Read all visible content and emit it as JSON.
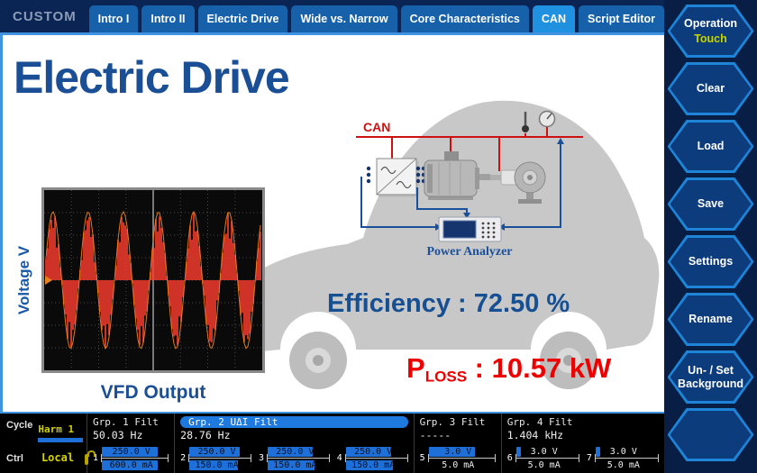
{
  "topbar": {
    "brand": "CUSTOM",
    "tabs": [
      {
        "label": "Intro I",
        "selected": false
      },
      {
        "label": "Intro II",
        "selected": false
      },
      {
        "label": "Electric Drive",
        "selected": false
      },
      {
        "label": "Wide vs. Narrow",
        "selected": false
      },
      {
        "label": "Core Characteristics",
        "selected": false
      },
      {
        "label": "CAN",
        "selected": true
      },
      {
        "label": "Script Editor",
        "selected": false
      }
    ]
  },
  "side_buttons": [
    {
      "label": "Operation",
      "sublabel": "Touch"
    },
    {
      "label": "Clear",
      "sublabel": ""
    },
    {
      "label": "Load",
      "sublabel": ""
    },
    {
      "label": "Save",
      "sublabel": ""
    },
    {
      "label": "Settings",
      "sublabel": ""
    },
    {
      "label": "Rename",
      "sublabel": ""
    },
    {
      "label": "Un- / Set Background",
      "sublabel": ""
    },
    {
      "label": "",
      "sublabel": ""
    }
  ],
  "main": {
    "title": "Electric Drive",
    "scope": {
      "ylabel": "Voltage V",
      "caption": "VFD Output"
    },
    "diagram": {
      "can_label": "CAN",
      "analyzer_label": "Power Analyzer"
    },
    "efficiency": {
      "label": "Efficiency",
      "separator": " : ",
      "value": "72.50 %"
    },
    "ploss": {
      "label": "P",
      "subscript": "LOSS",
      "separator": " : ",
      "value": "10.57 kW"
    }
  },
  "chart_data": {
    "type": "line",
    "title": "VFD Output",
    "ylabel": "Voltage V",
    "xlabel": "",
    "grid": true,
    "legend_position": "none",
    "description": "Oscilloscope-style display of VFD output voltage: a sine-modulated PWM pulse train symmetric about zero, roughly 6 fundamental cycles visible, no numeric axis scales shown, trigger cursor at horizontal center",
    "cycles_visible": 6.2,
    "series": [
      {
        "name": "VFD output voltage",
        "waveform": "sine-modulated-pwm",
        "relative_amplitude": 1.0
      }
    ]
  },
  "statusbar": {
    "cycle": {
      "label": "Cycle",
      "value": "Harm 1"
    },
    "ctrl": {
      "label": "Ctrl",
      "value": "Local"
    },
    "groups": [
      {
        "name": "Grp. 1 Filt",
        "freq": "50.03  Hz",
        "highlighted": false,
        "flex": 1,
        "channels": [
          {
            "num": "1",
            "voltage": "250.0 V",
            "current": "600.0 mA",
            "v_fill": 0.95,
            "i_fill": 0.95
          }
        ]
      },
      {
        "name": "Grp. 2 UΔI Filt",
        "freq": "28.76  Hz",
        "highlighted": true,
        "flex": 3,
        "channels": [
          {
            "num": "2",
            "voltage": "250.0 V",
            "current": "150.0 mA",
            "v_fill": 0.92,
            "i_fill": 0.88
          },
          {
            "num": "3",
            "voltage": "250.0 V",
            "current": "150.0 mA",
            "v_fill": 0.82,
            "i_fill": 0.86
          },
          {
            "num": "4",
            "voltage": "250.0 V",
            "current": "150.0 mA",
            "v_fill": 0.82,
            "i_fill": 0.86
          }
        ]
      },
      {
        "name": "Grp. 3 Filt",
        "freq": "-----",
        "highlighted": false,
        "flex": 1,
        "channels": [
          {
            "num": "5",
            "voltage": "3.0 V",
            "current": "5.0 mA",
            "v_fill": 0.78,
            "i_fill": 0
          }
        ]
      },
      {
        "name": "Grp. 4 Filt",
        "freq": "1.404 kHz",
        "highlighted": false,
        "flex": 2,
        "channels": [
          {
            "num": "6",
            "voltage": "3.0 V",
            "current": "5.0 mA",
            "v_fill": 0.08,
            "i_fill": 0
          },
          {
            "num": "7",
            "voltage": "3.0 V",
            "current": "5.0 mA",
            "v_fill": 0.08,
            "i_fill": 0
          }
        ]
      }
    ]
  },
  "colors": {
    "accent_blue": "#1a4f9a",
    "tab_blue": "#1661aa",
    "tab_selected": "#2090e0",
    "status_yellow": "#d2d300",
    "bar_blue": "#1f6fd8",
    "alert_red": "#ee0000",
    "can_red": "#cc1111",
    "waveform_red": "#f2392c",
    "envelope_orange": "#e8821e"
  }
}
